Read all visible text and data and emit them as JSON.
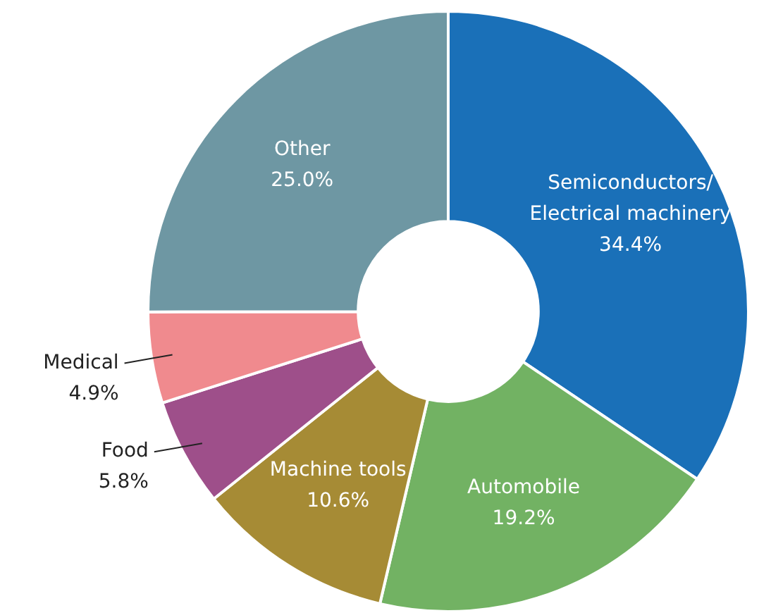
{
  "chart_data": {
    "type": "donut",
    "categories": [
      "Semiconductors/ Electrical machinery",
      "Automobile",
      "Machine tools",
      "Food",
      "Medical",
      "Other"
    ],
    "values": [
      34.4,
      19.2,
      10.6,
      5.8,
      4.9,
      25.0
    ],
    "value_labels": [
      "34.4%",
      "19.2%",
      "10.6%",
      "5.8%",
      "4.9%",
      "25.0%"
    ],
    "colors": [
      "#1a70b8",
      "#72b263",
      "#a68b35",
      "#9e4f8a",
      "#f08a8e",
      "#6e97a3"
    ],
    "legend": false
  }
}
